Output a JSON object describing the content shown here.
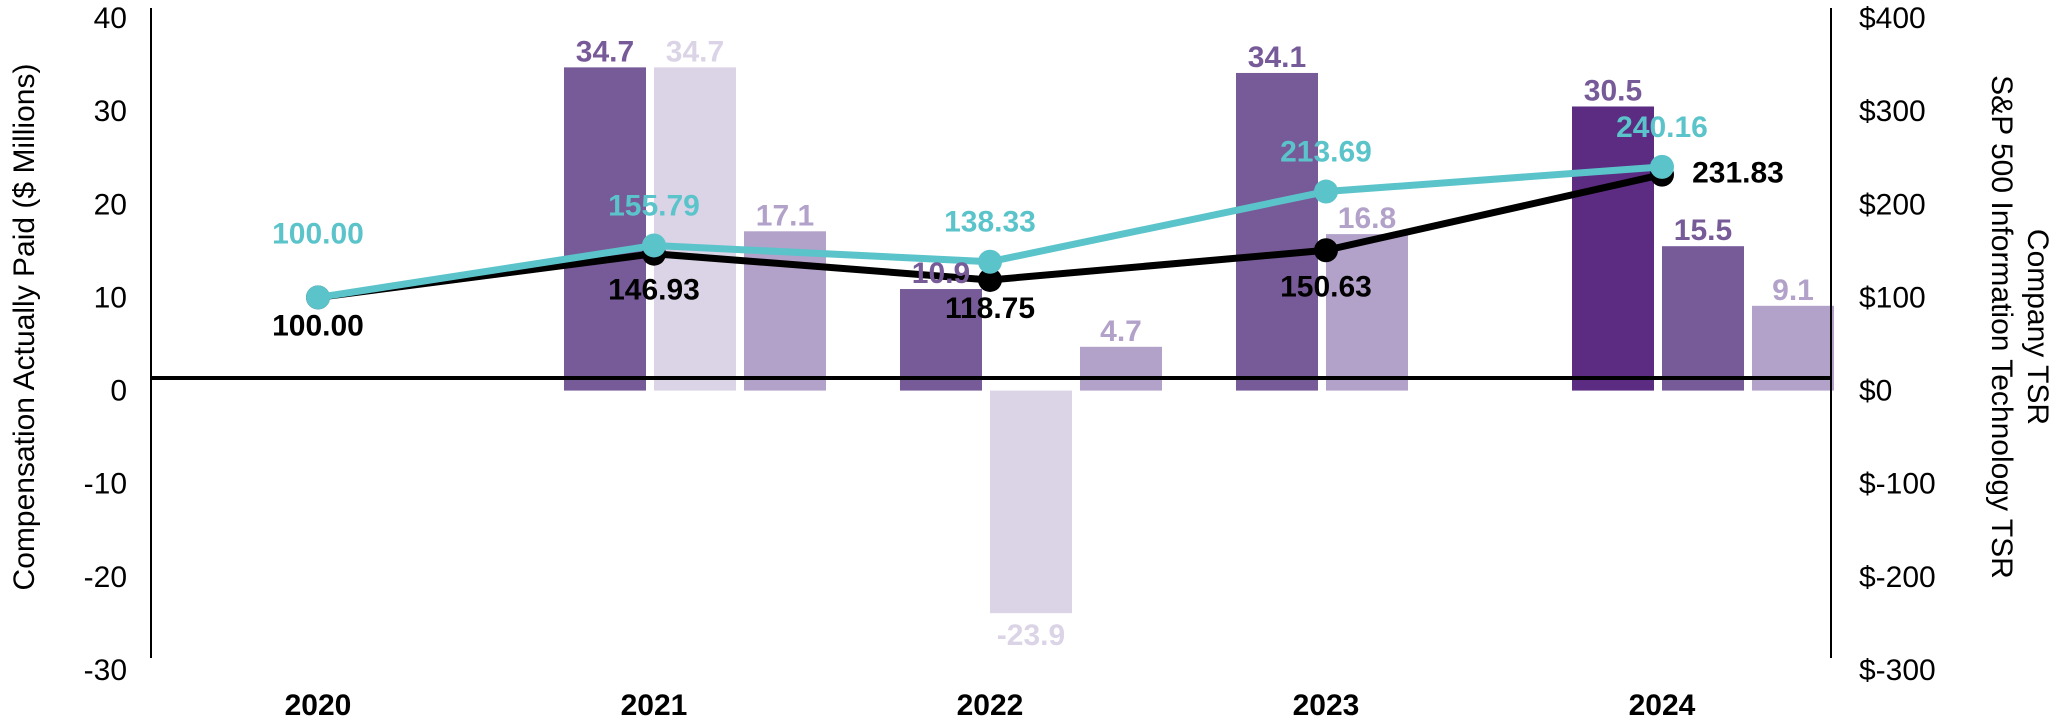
{
  "chart_data": {
    "type": "bar",
    "title": "",
    "categories": [
      "2020",
      "2021",
      "2022",
      "2023",
      "2024"
    ],
    "ylabel": "Compensation Actually Paid ($ Millions)",
    "ylim": [
      -30,
      40
    ],
    "yticks": [
      40,
      30,
      20,
      10,
      0,
      -10,
      -20,
      -30
    ],
    "y2label_lines": [
      "Company TSR",
      "S&P 500 Information  Technology TSR"
    ],
    "y2lim": [
      -300,
      400
    ],
    "y2ticks": [
      {
        "value": 400,
        "label": "$400"
      },
      {
        "value": 300,
        "label": "$300"
      },
      {
        "value": 200,
        "label": "$200"
      },
      {
        "value": 100,
        "label": "$100"
      },
      {
        "value": 0,
        "label": "$0"
      },
      {
        "value": -100,
        "label": "$-100"
      },
      {
        "value": -200,
        "label": "$-200"
      },
      {
        "value": -300,
        "label": "$-300"
      }
    ],
    "bars": [
      {
        "category": "2021",
        "slot": 0,
        "value": 34.7,
        "label": "34.7",
        "color": "#775a98",
        "label_color": "#775a98"
      },
      {
        "category": "2021",
        "slot": 1,
        "value": 34.7,
        "label": "34.7",
        "color": "#dbd3e6",
        "label_color": "#dbd3e6"
      },
      {
        "category": "2021",
        "slot": 2,
        "value": 17.1,
        "label": "17.1",
        "color": "#b2a1c9",
        "label_color": "#b2a1c9"
      },
      {
        "category": "2022",
        "slot": 0,
        "value": 10.9,
        "label": "10.9",
        "color": "#775a98",
        "label_color": "#775a98"
      },
      {
        "category": "2022",
        "slot": 1,
        "value": -23.9,
        "label": "-23.9",
        "color": "#dbd3e6",
        "label_color": "#dbd3e6"
      },
      {
        "category": "2022",
        "slot": 2,
        "value": 4.7,
        "label": "4.7",
        "color": "#b2a1c9",
        "label_color": "#b2a1c9"
      },
      {
        "category": "2023",
        "slot": 0,
        "value": 34.1,
        "label": "34.1",
        "color": "#775a98",
        "label_color": "#775a98"
      },
      {
        "category": "2023",
        "slot": 1,
        "value": 16.8,
        "label": "16.8",
        "color": "#b2a1c9",
        "label_color": "#b2a1c9"
      },
      {
        "category": "2024",
        "slot": 0,
        "value": 30.5,
        "label": "30.5",
        "color": "#5b2c82",
        "label_color": "#775a98"
      },
      {
        "category": "2024",
        "slot": 1,
        "value": 15.5,
        "label": "15.5",
        "color": "#775a98",
        "label_color": "#775a98"
      },
      {
        "category": "2024",
        "slot": 2,
        "value": 9.1,
        "label": "9.1",
        "color": "#b2a1c9",
        "label_color": "#b2a1c9"
      }
    ],
    "lines": [
      {
        "name": "Company TSR",
        "color": "#000000",
        "values": [
          100.0,
          146.93,
          118.75,
          150.63,
          231.83
        ],
        "labels": [
          "100.00",
          "146.93",
          "118.75",
          "150.63",
          "231.83"
        ]
      },
      {
        "name": "S&P 500 Information Technology TSR",
        "color": "#5bc4cb",
        "values": [
          100.0,
          155.79,
          138.33,
          213.69,
          240.16
        ],
        "labels": [
          "100.00",
          "155.79",
          "138.33",
          "213.69",
          "240.16"
        ]
      }
    ]
  }
}
